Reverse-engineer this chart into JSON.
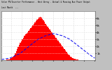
{
  "title": "Solar PV/Inverter Performance - West Array - Actual & Running Ave Power Output",
  "subtitle": "Last Month  ---",
  "bg_color": "#c0c0c0",
  "plot_bg_color": "#ffffff",
  "grid_color": "#aaaaaa",
  "bar_color": "#ff0000",
  "bar_edge_color": "#cc0000",
  "line_color": "#0000ee",
  "title_color": "#000000",
  "n_bars": 90,
  "bar_heights": [
    0.01,
    0.02,
    0.03,
    0.04,
    0.05,
    0.07,
    0.1,
    0.14,
    0.2,
    0.28,
    0.38,
    0.52,
    0.72,
    1.0,
    1.3,
    1.6,
    1.9,
    2.2,
    2.5,
    2.75,
    3.0,
    3.25,
    3.5,
    3.7,
    3.85,
    4.0,
    4.2,
    4.4,
    4.6,
    4.8,
    5.0,
    5.2,
    5.45,
    5.65,
    5.8,
    5.95,
    6.1,
    6.2,
    6.1,
    5.95,
    5.75,
    5.5,
    5.25,
    5.0,
    4.8,
    4.6,
    4.4,
    4.2,
    4.0,
    3.8,
    3.6,
    3.4,
    3.2,
    3.0,
    2.8,
    2.6,
    2.4,
    2.2,
    2.0,
    1.8,
    1.6,
    1.4,
    1.2,
    1.0,
    0.82,
    0.66,
    0.52,
    0.4,
    0.3,
    0.22,
    0.16,
    0.12,
    0.09,
    0.07,
    0.05,
    0.04,
    0.03,
    0.02,
    0.01,
    0.01,
    0.01,
    0.01,
    0.01,
    0.01,
    0.01,
    0.01,
    0.01,
    0.01,
    0.01,
    0.01
  ],
  "avg_line_x": [
    0,
    8,
    18,
    28,
    35,
    42,
    50,
    58,
    65,
    72,
    78,
    84,
    89
  ],
  "avg_line_y": [
    0.1,
    0.3,
    1.0,
    2.2,
    3.0,
    3.5,
    3.8,
    3.5,
    3.0,
    2.2,
    1.5,
    0.8,
    0.3
  ],
  "ylim": [
    0,
    7
  ],
  "yticks": [
    1,
    2,
    3,
    4,
    5,
    6
  ],
  "ytick_labels": [
    "1k",
    "2k",
    "3k",
    "4k",
    "5k",
    "6k"
  ],
  "n_xticks": 10
}
